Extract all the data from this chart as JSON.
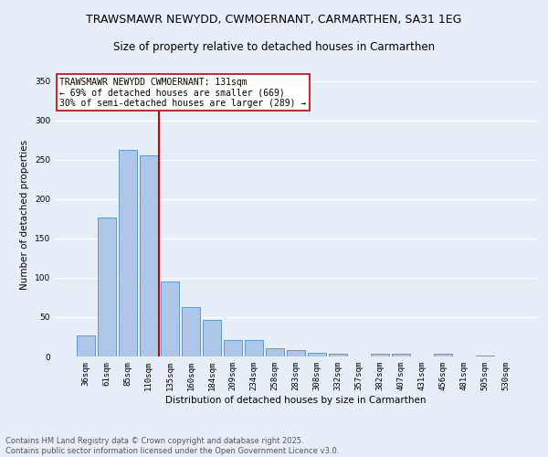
{
  "title": "TRAWSMAWR NEWYDD, CWMOERNANT, CARMARTHEN, SA31 1EG",
  "subtitle": "Size of property relative to detached houses in Carmarthen",
  "xlabel": "Distribution of detached houses by size in Carmarthen",
  "ylabel": "Number of detached properties",
  "categories": [
    "36sqm",
    "61sqm",
    "85sqm",
    "110sqm",
    "135sqm",
    "160sqm",
    "184sqm",
    "209sqm",
    "234sqm",
    "258sqm",
    "283sqm",
    "308sqm",
    "332sqm",
    "357sqm",
    "382sqm",
    "407sqm",
    "431sqm",
    "456sqm",
    "481sqm",
    "505sqm",
    "530sqm"
  ],
  "values": [
    27,
    176,
    262,
    256,
    95,
    63,
    46,
    21,
    21,
    10,
    8,
    5,
    3,
    0,
    4,
    4,
    0,
    3,
    0,
    1,
    0
  ],
  "bar_color": "#aec6e8",
  "bar_edge_color": "#5b9bd5",
  "vline_color": "#cc0000",
  "vline_pos": 3.5,
  "annotation_text": "TRAWSMAWR NEWYDD CWMOERNANT: 131sqm\n← 69% of detached houses are smaller (669)\n30% of semi-detached houses are larger (289) →",
  "annotation_box_color": "#ffffff",
  "annotation_box_edge": "#cc0000",
  "ylim": [
    0,
    360
  ],
  "yticks": [
    0,
    50,
    100,
    150,
    200,
    250,
    300,
    350
  ],
  "bg_color": "#e8eef8",
  "grid_color": "#ffffff",
  "footer": "Contains HM Land Registry data © Crown copyright and database right 2025.\nContains public sector information licensed under the Open Government Licence v3.0.",
  "title_fontsize": 9,
  "subtitle_fontsize": 8.5,
  "axis_label_fontsize": 7.5,
  "tick_fontsize": 6.5,
  "annotation_fontsize": 7,
  "footer_fontsize": 6
}
